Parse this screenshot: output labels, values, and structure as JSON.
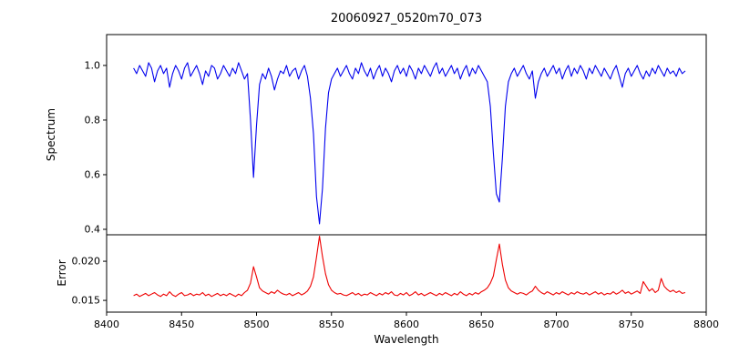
{
  "chart_data": {
    "type": "line",
    "title": "20060927_0520m70_073",
    "xlabel": "Wavelength",
    "grid": false,
    "legend": "none",
    "xlim": [
      8400,
      8800
    ],
    "x_ticks": [
      8400,
      8450,
      8500,
      8550,
      8600,
      8650,
      8700,
      8750,
      8800
    ],
    "x_start": 8418,
    "x_step": 2,
    "panels": [
      {
        "name": "spectrum",
        "ylabel": "Spectrum",
        "color": "#0000ee",
        "ylim": [
          0.38,
          1.113
        ],
        "ytick_values": [
          0.4,
          0.6,
          0.8,
          1.0
        ],
        "ytick_labels": [
          "0.4",
          "0.6",
          "0.8",
          "1.0"
        ],
        "absorption_line_centers": [
          8498,
          8542,
          8662
        ],
        "absorption_line_depths": [
          0.59,
          0.42,
          0.5
        ],
        "values": [
          0.99,
          0.97,
          1.0,
          0.98,
          0.96,
          1.01,
          0.99,
          0.94,
          0.98,
          1.0,
          0.97,
          0.99,
          0.92,
          0.97,
          1.0,
          0.98,
          0.95,
          0.99,
          1.01,
          0.96,
          0.98,
          1.0,
          0.97,
          0.93,
          0.98,
          0.96,
          1.0,
          0.99,
          0.95,
          0.97,
          1.0,
          0.98,
          0.96,
          0.99,
          0.97,
          1.01,
          0.98,
          0.95,
          0.97,
          0.8,
          0.59,
          0.78,
          0.93,
          0.97,
          0.95,
          0.99,
          0.96,
          0.91,
          0.95,
          0.98,
          0.97,
          1.0,
          0.96,
          0.98,
          0.99,
          0.95,
          0.98,
          1.0,
          0.96,
          0.88,
          0.75,
          0.52,
          0.42,
          0.55,
          0.77,
          0.9,
          0.95,
          0.97,
          0.99,
          0.96,
          0.98,
          1.0,
          0.97,
          0.95,
          0.99,
          0.97,
          1.01,
          0.98,
          0.96,
          0.99,
          0.95,
          0.98,
          1.0,
          0.96,
          0.99,
          0.97,
          0.94,
          0.98,
          1.0,
          0.97,
          0.99,
          0.96,
          1.0,
          0.98,
          0.95,
          0.99,
          0.97,
          1.0,
          0.98,
          0.96,
          0.99,
          1.01,
          0.97,
          0.99,
          0.96,
          0.98,
          1.0,
          0.97,
          0.99,
          0.95,
          0.98,
          1.0,
          0.96,
          0.99,
          0.97,
          1.0,
          0.98,
          0.96,
          0.94,
          0.85,
          0.68,
          0.53,
          0.5,
          0.66,
          0.85,
          0.94,
          0.97,
          0.99,
          0.96,
          0.98,
          1.0,
          0.97,
          0.95,
          0.98,
          0.88,
          0.94,
          0.97,
          0.99,
          0.96,
          0.98,
          1.0,
          0.97,
          0.99,
          0.95,
          0.98,
          1.0,
          0.96,
          0.99,
          0.97,
          1.0,
          0.98,
          0.95,
          0.99,
          0.97,
          1.0,
          0.98,
          0.96,
          0.99,
          0.97,
          0.95,
          0.98,
          1.0,
          0.96,
          0.92,
          0.97,
          0.99,
          0.96,
          0.98,
          1.0,
          0.97,
          0.95,
          0.98,
          0.96,
          0.99,
          0.97,
          1.0,
          0.98,
          0.96,
          0.99,
          0.97,
          0.98,
          0.96,
          0.99,
          0.97,
          0.98
        ]
      },
      {
        "name": "error",
        "ylabel": "Error",
        "color": "#ee0000",
        "ylim": [
          0.0135,
          0.02338
        ],
        "ytick_values": [
          0.015,
          0.02
        ],
        "ytick_labels": [
          "0.015",
          "0.020"
        ],
        "values": [
          0.0156,
          0.0158,
          0.0155,
          0.0157,
          0.0159,
          0.0156,
          0.0158,
          0.016,
          0.0157,
          0.0155,
          0.0158,
          0.0156,
          0.0161,
          0.0157,
          0.0155,
          0.0158,
          0.016,
          0.0156,
          0.0157,
          0.0159,
          0.0156,
          0.0158,
          0.0157,
          0.016,
          0.0156,
          0.0158,
          0.0155,
          0.0157,
          0.0159,
          0.0156,
          0.0158,
          0.0156,
          0.0159,
          0.0157,
          0.0155,
          0.0158,
          0.0156,
          0.016,
          0.0163,
          0.0172,
          0.0193,
          0.018,
          0.0166,
          0.0162,
          0.016,
          0.0158,
          0.0161,
          0.0159,
          0.0163,
          0.016,
          0.0158,
          0.0157,
          0.0159,
          0.0156,
          0.0158,
          0.016,
          0.0157,
          0.0159,
          0.0162,
          0.0168,
          0.018,
          0.0205,
          0.0232,
          0.0206,
          0.0184,
          0.017,
          0.0163,
          0.016,
          0.0158,
          0.0159,
          0.0157,
          0.0156,
          0.0158,
          0.016,
          0.0157,
          0.0159,
          0.0156,
          0.0158,
          0.0157,
          0.016,
          0.0158,
          0.0156,
          0.0159,
          0.0157,
          0.016,
          0.0158,
          0.0161,
          0.0157,
          0.0156,
          0.0159,
          0.0157,
          0.016,
          0.0156,
          0.0158,
          0.0161,
          0.0157,
          0.0159,
          0.0156,
          0.0158,
          0.016,
          0.0158,
          0.0156,
          0.0159,
          0.0157,
          0.016,
          0.0158,
          0.0156,
          0.0159,
          0.0157,
          0.0161,
          0.0158,
          0.0156,
          0.0159,
          0.0157,
          0.016,
          0.0158,
          0.0161,
          0.0163,
          0.0166,
          0.0172,
          0.0181,
          0.0202,
          0.0222,
          0.0196,
          0.0176,
          0.0166,
          0.0162,
          0.016,
          0.0158,
          0.016,
          0.0159,
          0.0157,
          0.016,
          0.0162,
          0.0168,
          0.0163,
          0.016,
          0.0158,
          0.0161,
          0.0159,
          0.0157,
          0.016,
          0.0158,
          0.0161,
          0.0159,
          0.0157,
          0.016,
          0.0158,
          0.0161,
          0.0159,
          0.0158,
          0.016,
          0.0157,
          0.0159,
          0.0161,
          0.0158,
          0.016,
          0.0157,
          0.0159,
          0.0158,
          0.0161,
          0.0158,
          0.016,
          0.0163,
          0.0159,
          0.0161,
          0.0158,
          0.016,
          0.0162,
          0.0159,
          0.0174,
          0.0168,
          0.0162,
          0.0165,
          0.016,
          0.0163,
          0.0178,
          0.0168,
          0.0164,
          0.0161,
          0.0163,
          0.016,
          0.0162,
          0.0159,
          0.016
        ]
      }
    ]
  }
}
